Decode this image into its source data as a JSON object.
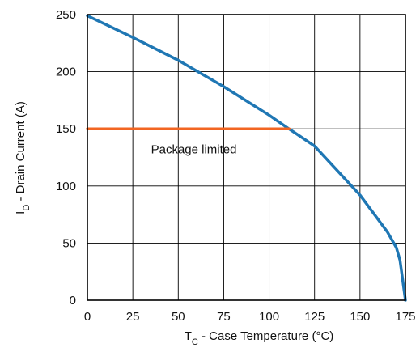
{
  "chart_data": {
    "type": "line",
    "xlabel": {
      "main": "T",
      "sub": "C",
      "rest": " - Case Temperature (°C)"
    },
    "ylabel": {
      "main": "I",
      "sub": "D",
      "rest": " - Drain Current (A)"
    },
    "xlim": [
      0,
      175
    ],
    "ylim": [
      0,
      250
    ],
    "x_ticks": [
      0,
      25,
      50,
      75,
      100,
      125,
      150,
      175
    ],
    "y_ticks": [
      0,
      50,
      100,
      150,
      200,
      250
    ],
    "grid": true,
    "legend": "none",
    "annotation": {
      "text": "Package limited",
      "x": 35,
      "y": 132
    },
    "series": [
      {
        "color": "#1f77b4",
        "x": [
          0,
          25,
          50,
          75,
          100,
          110,
          125,
          150,
          165,
          170,
          172,
          175
        ],
        "y": [
          249,
          230,
          210,
          187,
          162,
          151,
          135,
          92,
          60,
          46,
          35,
          0
        ]
      },
      {
        "color": "#f26522",
        "x": [
          0,
          111
        ],
        "y": [
          150,
          150
        ]
      }
    ]
  }
}
